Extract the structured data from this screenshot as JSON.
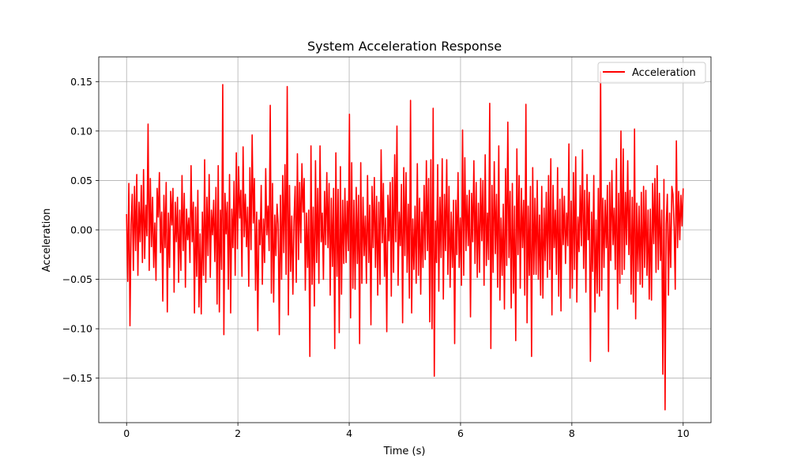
{
  "chart_data": {
    "type": "line",
    "title": "System Acceleration Response",
    "xlabel": "Time (s)",
    "ylabel": "Acceleration",
    "xlim": [
      -0.5,
      10.5
    ],
    "ylim": [
      -0.195,
      0.175
    ],
    "x_ticks": [
      0,
      2,
      4,
      6,
      8,
      10
    ],
    "x_tick_labels": [
      "0",
      "2",
      "4",
      "6",
      "8",
      "10"
    ],
    "y_ticks": [
      -0.15,
      -0.1,
      -0.05,
      0.0,
      0.05,
      0.1,
      0.15
    ],
    "y_tick_labels": [
      "−0.15",
      "−0.10",
      "−0.05",
      "0.00",
      "0.05",
      "0.10",
      "0.15"
    ],
    "grid": true,
    "legend": {
      "position": "top-right",
      "entries": [
        "Acceleration"
      ]
    },
    "series": [
      {
        "name": "Acceleration",
        "color": "#ff0000",
        "x_start": 0,
        "x_end": 10,
        "y": [
          0.016,
          -0.052,
          0.047,
          -0.097,
          0.005,
          0.036,
          -0.041,
          0.044,
          -0.021,
          0.056,
          -0.046,
          0.028,
          -0.012,
          0.045,
          -0.033,
          0.061,
          -0.029,
          0.025,
          -0.006,
          0.107,
          -0.041,
          0.052,
          -0.017,
          0.033,
          -0.038,
          0.007,
          -0.051,
          0.042,
          0.013,
          0.058,
          -0.023,
          0.018,
          -0.072,
          0.035,
          -0.018,
          0.048,
          -0.083,
          0.017,
          -0.038,
          0.039,
          0.005,
          0.042,
          -0.063,
          0.028,
          -0.012,
          0.033,
          -0.053,
          0.02,
          -0.041,
          0.055,
          -0.021,
          0.037,
          -0.058,
          0.021,
          -0.01,
          0.012,
          -0.033,
          0.065,
          -0.012,
          0.028,
          -0.084,
          0.023,
          -0.047,
          0.04,
          -0.078,
          -0.004,
          -0.085,
          0.018,
          -0.046,
          0.071,
          -0.053,
          0.033,
          -0.026,
          0.056,
          -0.048,
          0.02,
          -0.005,
          0.03,
          -0.032,
          0.043,
          -0.075,
          0.065,
          -0.083,
          0.02,
          -0.04,
          0.147,
          -0.106,
          0.037,
          -0.004,
          0.028,
          -0.06,
          0.056,
          -0.084,
          0.021,
          -0.018,
          0.049,
          -0.046,
          0.078,
          -0.019,
          0.064,
          0.012,
          0.04,
          -0.047,
          0.084,
          -0.007,
          0.036,
          -0.017,
          0.023,
          -0.057,
          0.063,
          -0.02,
          0.096,
          0.007,
          0.052,
          -0.061,
          0.018,
          -0.102,
          0.01,
          -0.015,
          0.045,
          -0.055,
          0.011,
          -0.033,
          0.062,
          -0.005,
          0.024,
          -0.021,
          0.126,
          -0.064,
          0.047,
          -0.073,
          0.015,
          -0.026,
          0.026,
          0.006,
          -0.106,
          0.035,
          -0.05,
          0.055,
          -0.023,
          0.066,
          -0.045,
          0.145,
          -0.086,
          0.045,
          -0.042,
          0.014,
          -0.065,
          0.01,
          0.044,
          -0.053,
          0.077,
          -0.03,
          0.048,
          -0.013,
          0.067,
          0.018,
          0.052,
          -0.061,
          0.017,
          -0.038,
          0.02,
          -0.128,
          0.085,
          -0.055,
          0.023,
          -0.077,
          0.07,
          -0.033,
          0.042,
          -0.054,
          0.085,
          -0.012,
          0.017,
          -0.05,
          0.039,
          -0.015,
          0.058,
          -0.018,
          0.047,
          -0.066,
          0.032,
          -0.037,
          0.042,
          -0.12,
          0.078,
          -0.047,
          0.041,
          -0.104,
          0.064,
          -0.065,
          0.03,
          -0.034,
          0.042,
          -0.033,
          0.029,
          -0.021,
          0.117,
          -0.089,
          0.068,
          -0.059,
          0.03,
          -0.06,
          0.043,
          -0.034,
          0.035,
          -0.115,
          0.068,
          -0.054,
          0.033,
          -0.026,
          0.014,
          -0.054,
          0.055,
          -0.033,
          0.025,
          -0.096,
          0.044,
          -0.018,
          0.053,
          -0.038,
          0.034,
          -0.066,
          0.028,
          -0.055,
          0.081,
          -0.013,
          0.047,
          -0.047,
          0.012,
          -0.103,
          0.035,
          -0.011,
          0.048,
          -0.067,
          0.053,
          -0.043,
          0.076,
          -0.012,
          0.105,
          -0.056,
          0.018,
          -0.016,
          0.046,
          -0.094,
          0.063,
          -0.026,
          0.058,
          -0.043,
          0.026,
          -0.069,
          0.131,
          -0.084,
          0.011,
          -0.04,
          0.024,
          -0.054,
          0.067,
          -0.046,
          0.032,
          -0.065,
          0.018,
          -0.038,
          0.045,
          -0.03,
          0.07,
          -0.021,
          0.052,
          -0.093,
          0.071,
          -0.1,
          0.123,
          -0.148,
          0.009,
          -0.033,
          0.066,
          -0.062,
          0.033,
          -0.028,
          0.072,
          -0.07,
          0.036,
          -0.021,
          0.071,
          -0.045,
          0.044,
          -0.058,
          0.018,
          -0.038,
          0.03,
          -0.115,
          0.03,
          -0.025,
          0.058,
          -0.038,
          0.012,
          -0.056,
          0.101,
          -0.046,
          0.073,
          -0.021,
          0.035,
          -0.016,
          0.04,
          -0.088,
          0.037,
          -0.012,
          0.07,
          -0.034,
          0.048,
          -0.048,
          0.027,
          -0.043,
          0.052,
          -0.011,
          0.05,
          -0.056,
          0.076,
          -0.036,
          0.017,
          -0.03,
          0.128,
          -0.12,
          0.045,
          -0.043,
          0.069,
          -0.024,
          0.036,
          -0.058,
          0.085,
          -0.071,
          0.012,
          -0.046,
          0.026,
          -0.08,
          0.062,
          -0.036,
          0.109,
          -0.028,
          0.039,
          -0.079,
          0.047,
          -0.064,
          0.024,
          -0.112,
          0.082,
          -0.025,
          0.055,
          -0.059,
          0.042,
          -0.018,
          0.03,
          -0.066,
          0.127,
          -0.094,
          0.024,
          -0.046,
          0.044,
          -0.128,
          0.063,
          -0.045,
          0.032,
          -0.045,
          0.05,
          -0.05,
          0.015,
          -0.066,
          0.044,
          -0.069,
          0.022,
          -0.031,
          0.038,
          -0.048,
          0.055,
          -0.04,
          0.072,
          -0.086,
          0.045,
          -0.018,
          0.02,
          -0.045,
          0.063,
          -0.067,
          0.031,
          -0.082,
          0.042,
          -0.015,
          0.034,
          -0.034,
          0.017,
          -0.016,
          0.087,
          -0.069,
          0.029,
          -0.059,
          0.058,
          -0.04,
          0.074,
          -0.073,
          0.013,
          -0.022,
          0.045,
          -0.016,
          0.081,
          -0.039,
          0.04,
          -0.063,
          0.056,
          -0.01,
          0.038,
          -0.133,
          0.018,
          -0.042,
          0.055,
          -0.083,
          0.01,
          -0.064,
          0.042,
          -0.067,
          0.16,
          -0.061,
          0.032,
          -0.038,
          0.03,
          -0.018,
          0.045,
          -0.123,
          0.048,
          -0.031,
          0.06,
          -0.015,
          0.022,
          -0.04,
          0.072,
          -0.08,
          0.037,
          -0.054,
          0.1,
          -0.045,
          0.082,
          -0.04,
          0.038,
          -0.015,
          0.07,
          -0.025,
          0.04,
          -0.065,
          0.033,
          -0.073,
          0.102,
          -0.09,
          0.027,
          -0.042,
          0.024,
          -0.055,
          0.038,
          -0.058,
          0.044,
          -0.038,
          0.04,
          -0.046,
          0.02,
          -0.07,
          0.021,
          -0.071,
          0.047,
          -0.014,
          0.052,
          -0.043,
          0.065,
          -0.04,
          0.037,
          -0.031,
          0.02,
          -0.146,
          0.051,
          -0.182,
          0.006,
          0.036,
          -0.066,
          0.017,
          -0.038,
          0.044,
          0.036,
          0.003,
          -0.06,
          0.09,
          -0.018,
          0.039,
          -0.01,
          0.035,
          0.004,
          0.042
        ]
      }
    ]
  }
}
